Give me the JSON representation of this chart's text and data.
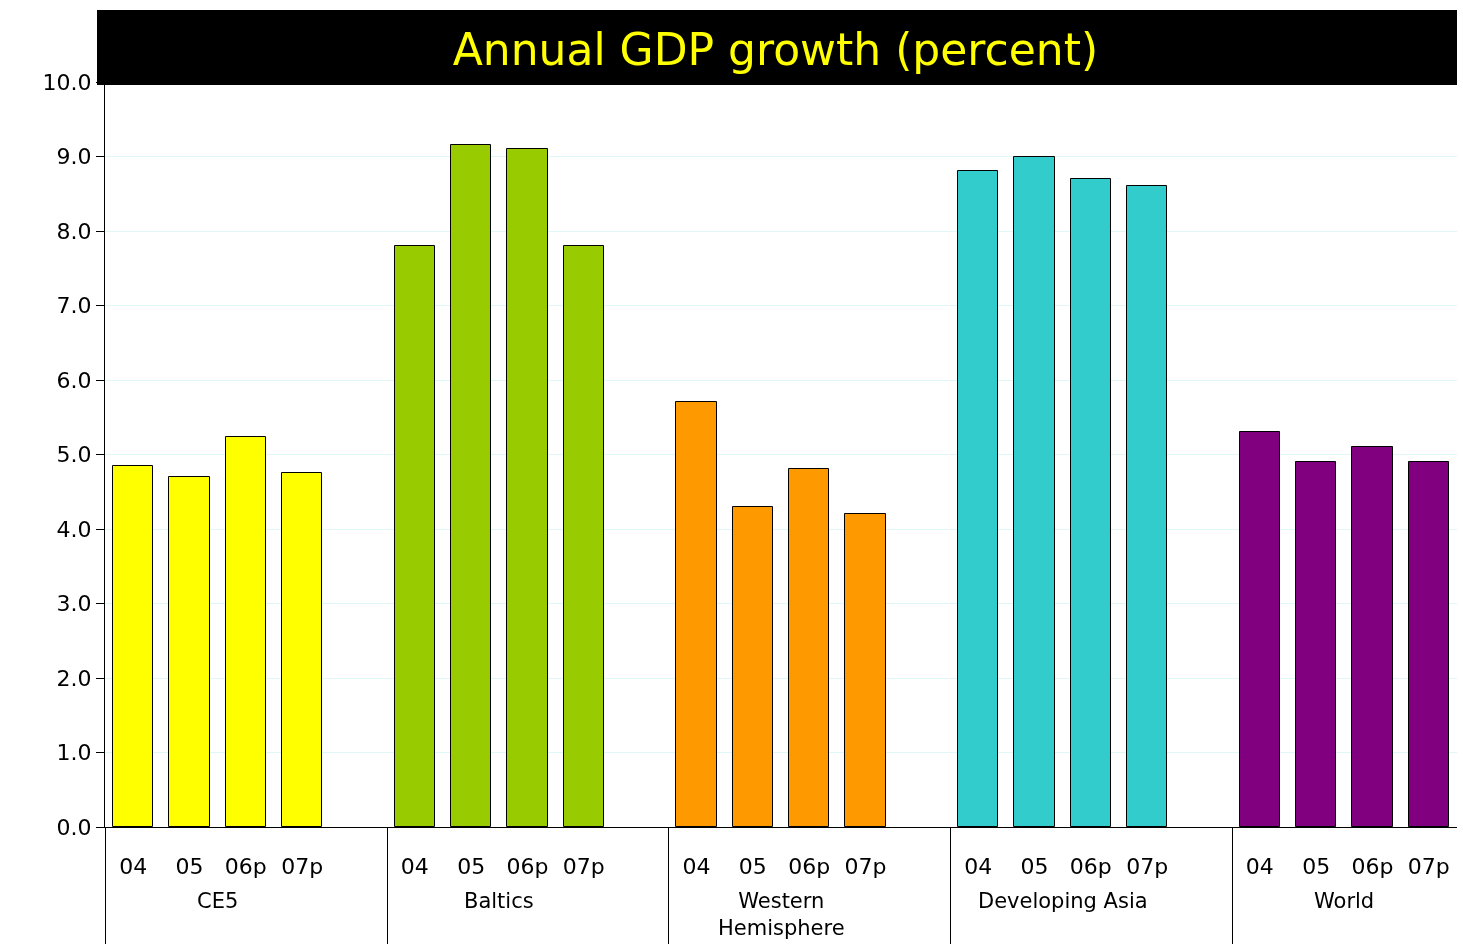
{
  "chart_data": {
    "type": "bar",
    "title": "Annual GDP growth (percent)",
    "categories": [
      "04",
      "05",
      "06p",
      "07p",
      null,
      "04",
      "05",
      "06p",
      "07p",
      null,
      "04",
      "05",
      "06p",
      "07p",
      null,
      "04",
      "05",
      "06p",
      "07p",
      null,
      "04",
      "05",
      "06p",
      "07p"
    ],
    "values": [
      4.85,
      4.7,
      5.23,
      4.75,
      null,
      7.8,
      9.15,
      9.1,
      7.8,
      null,
      5.7,
      4.3,
      4.8,
      4.2,
      null,
      8.8,
      9.0,
      8.7,
      8.6,
      null,
      5.3,
      4.9,
      5.1,
      4.9
    ],
    "colors": [
      "#ffff00",
      "#ffff00",
      "#ffff00",
      "#ffff00",
      "#ffffff",
      "#99cc00",
      "#99cc00",
      "#99cc00",
      "#99cc00",
      "#ffffff",
      "#ff9900",
      "#ff9900",
      "#ff9900",
      "#ff9900",
      "#ffffff",
      "#33cccc",
      "#33cccc",
      "#33cccc",
      "#33cccc",
      "#ffffff",
      "#800080",
      "#800080",
      "#800080",
      "#800080"
    ],
    "annotations": [
      "CE5",
      "Baltics",
      "Western Hemisphere",
      "Developing Asia",
      "World"
    ],
    "ylim": [
      0,
      10
    ],
    "yticks": [
      {
        "value": 0,
        "label": "0.0"
      },
      {
        "value": 1,
        "label": "1.0"
      },
      {
        "value": 2,
        "label": "2.0"
      },
      {
        "value": 3,
        "label": "3.0"
      },
      {
        "value": 4,
        "label": "4.0"
      },
      {
        "value": 5,
        "label": "5.0"
      },
      {
        "value": 6,
        "label": "6.0"
      },
      {
        "value": 7,
        "label": "7.0"
      },
      {
        "value": 8,
        "label": "8.0"
      },
      {
        "value": 9,
        "label": "9.0"
      },
      {
        "value": 10,
        "label": "10.0"
      }
    ],
    "grid": "y"
  }
}
